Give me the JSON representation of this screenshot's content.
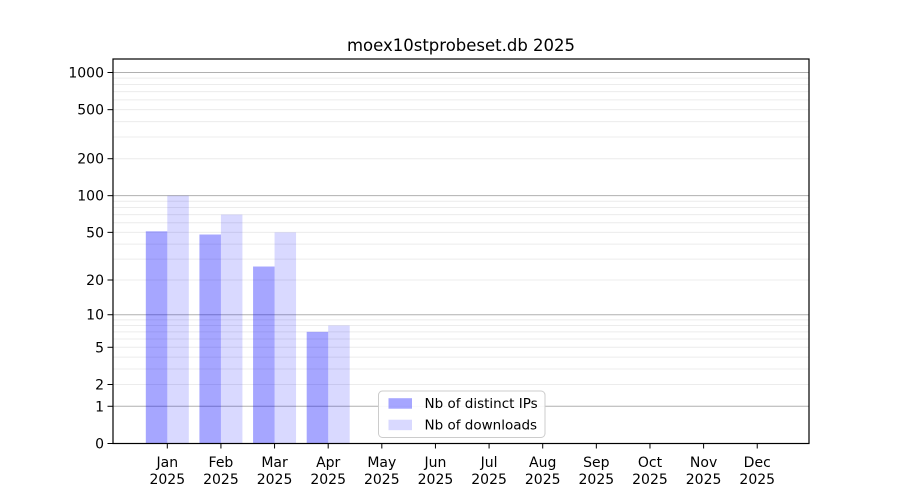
{
  "chart_data": {
    "type": "bar",
    "title": "moex10stprobeset.db 2025",
    "year_label": "2025",
    "categories": [
      "Jan",
      "Feb",
      "Mar",
      "Apr",
      "May",
      "Jun",
      "Jul",
      "Aug",
      "Sep",
      "Oct",
      "Nov",
      "Dec"
    ],
    "series": [
      {
        "name": "Nb of distinct IPs",
        "color": "#a6a6ff",
        "base_color": "#0000ff",
        "opacity": 0.35,
        "values": [
          51,
          48,
          26,
          7,
          0,
          0,
          0,
          0,
          0,
          0,
          0,
          0
        ]
      },
      {
        "name": "Nb of downloads",
        "color": "#d9d9ff",
        "base_color": "#0000ff",
        "opacity": 0.15,
        "values": [
          100,
          70,
          50,
          8,
          0,
          0,
          0,
          0,
          0,
          0,
          0,
          0
        ]
      }
    ],
    "y_ticks": [
      0,
      1,
      2,
      5,
      10,
      20,
      50,
      100,
      200,
      500,
      1000
    ],
    "y_scale": "log10(value+1)",
    "ylim": [
      0,
      1285
    ],
    "xlabel": "",
    "ylabel": "",
    "grid": true,
    "major_grid_values": [
      1,
      10,
      100,
      1000
    ],
    "major_grid_color": "#b0b0b0",
    "minor_grid_color": "#ececec",
    "legend_position": "lower center"
  }
}
